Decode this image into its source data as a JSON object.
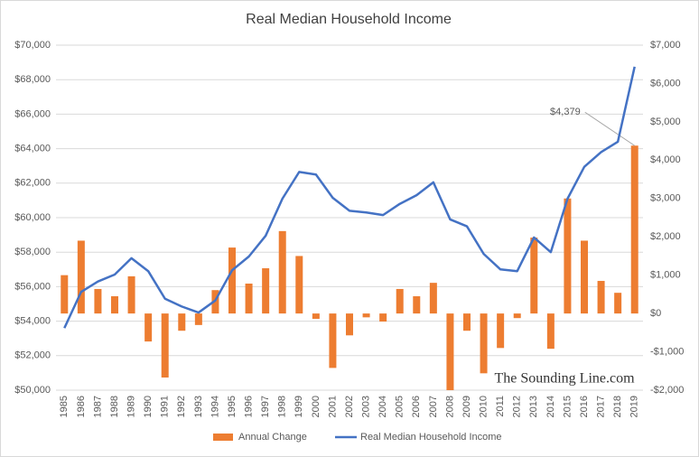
{
  "chart_data": {
    "type": "bar-line",
    "title": "Real Median Household Income",
    "watermark": "The Sounding Line.com",
    "categories": [
      "1985",
      "1986",
      "1987",
      "1988",
      "1989",
      "1990",
      "1991",
      "1992",
      "1993",
      "1994",
      "1995",
      "1996",
      "1997",
      "1998",
      "1999",
      "2000",
      "2001",
      "2002",
      "2003",
      "2004",
      "2005",
      "2006",
      "2007",
      "2008",
      "2009",
      "2010",
      "2011",
      "2012",
      "2013",
      "2014",
      "2015",
      "2016",
      "2017",
      "2018",
      "2019"
    ],
    "series": [
      {
        "name": "Annual Change",
        "type": "bar",
        "axis": "y2",
        "color": "#ed7d31",
        "values": [
          1000,
          1900,
          640,
          450,
          970,
          -730,
          -1670,
          -450,
          -300,
          610,
          1720,
          780,
          1180,
          2150,
          1500,
          -140,
          -1420,
          -570,
          -100,
          -210,
          640,
          450,
          800,
          -2000,
          -450,
          -1560,
          -900,
          -120,
          1980,
          -920,
          3000,
          1900,
          850,
          540,
          4379
        ],
        "value_labels": [
          null,
          null,
          null,
          null,
          null,
          null,
          null,
          null,
          null,
          null,
          null,
          null,
          null,
          null,
          null,
          null,
          null,
          null,
          null,
          null,
          null,
          null,
          null,
          null,
          null,
          null,
          null,
          null,
          null,
          null,
          null,
          null,
          null,
          null,
          "$4,379"
        ]
      },
      {
        "name": "Real Median Household Income",
        "type": "line",
        "color": "#4472c4",
        "values": [
          53600,
          55700,
          56300,
          56700,
          57650,
          56900,
          55300,
          54850,
          54500,
          55200,
          56950,
          57750,
          58950,
          61100,
          62650,
          62500,
          61150,
          60400,
          60300,
          60150,
          60800,
          61300,
          62050,
          59900,
          59500,
          57900,
          57000,
          56900,
          58850,
          58000,
          61100,
          62950,
          63800,
          64400,
          68750
        ]
      }
    ],
    "ylim": [
      50000,
      70000
    ],
    "yticks": [
      {
        "value": 50000,
        "label": "$50,000"
      },
      {
        "value": 52000,
        "label": "$52,000"
      },
      {
        "value": 54000,
        "label": "$54,000"
      },
      {
        "value": 56000,
        "label": "$56,000"
      },
      {
        "value": 58000,
        "label": "$58,000"
      },
      {
        "value": 60000,
        "label": "$60,000"
      },
      {
        "value": 62000,
        "label": "$62,000"
      },
      {
        "value": 64000,
        "label": "$64,000"
      },
      {
        "value": 66000,
        "label": "$66,000"
      },
      {
        "value": 68000,
        "label": "$68,000"
      },
      {
        "value": 70000,
        "label": "$70,000"
      }
    ],
    "y2lim": [
      -2000,
      7000
    ],
    "y2ticks": [
      {
        "value": -2000,
        "label": "-$2,000"
      },
      {
        "value": -1000,
        "label": "-$1,000"
      },
      {
        "value": 0,
        "label": "$0"
      },
      {
        "value": 1000,
        "label": "$1,000"
      },
      {
        "value": 2000,
        "label": "$2,000"
      },
      {
        "value": 3000,
        "label": "$3,000"
      },
      {
        "value": 4000,
        "label": "$4,000"
      },
      {
        "value": 5000,
        "label": "$5,000"
      },
      {
        "value": 6000,
        "label": "$6,000"
      },
      {
        "value": 7000,
        "label": "$7,000"
      }
    ],
    "grid": true,
    "legend": "bottom"
  }
}
